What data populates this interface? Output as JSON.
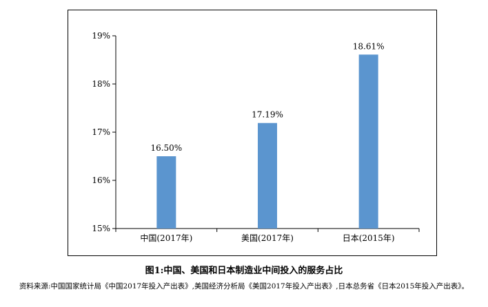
{
  "caption": "图1:中国、美国和日本制造业中间投入的服务占比",
  "source": "资料来源:中国国家统计局《中国2017年投入产出表》,美国经济分析局《美国2017年投入产出表》,日本总务省《日本2015年投入产出表》。",
  "chart_data": {
    "type": "bar",
    "categories": [
      "中国(2017年)",
      "美国(2017年)",
      "日本(2015年)"
    ],
    "values": [
      16.5,
      17.19,
      18.61
    ],
    "data_labels": [
      "16.50%",
      "17.19%",
      "18.61%"
    ],
    "ylim": [
      15,
      19
    ],
    "yticks": [
      15,
      16,
      17,
      18,
      19
    ],
    "ytick_labels": [
      "15%",
      "16%",
      "17%",
      "18%",
      "19%"
    ],
    "bar_color": "#5b95cf",
    "grid": false,
    "legend": "none"
  }
}
